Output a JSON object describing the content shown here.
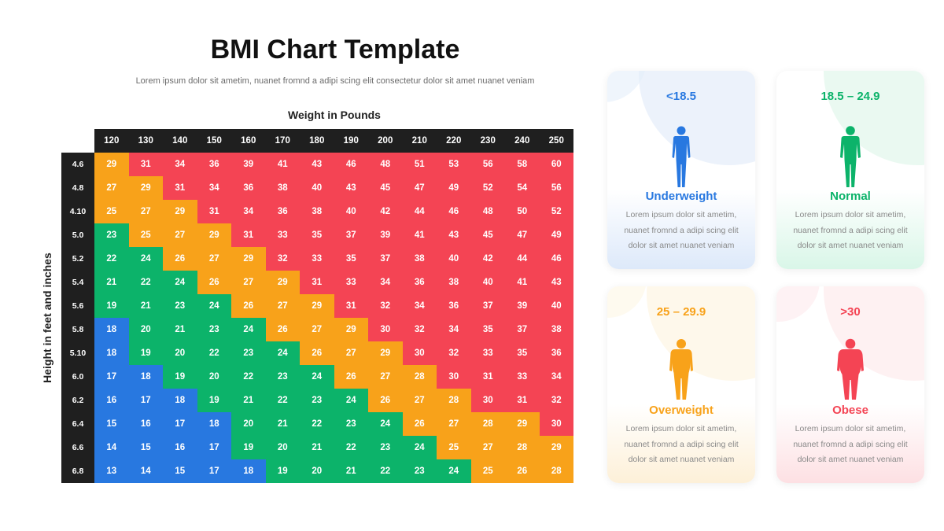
{
  "title": "BMI Chart Template",
  "subtitle": "Lorem ipsum dolor sit ametim, nuanet fromnd a adipi scing elit consectetur dolor sit amet nuanet veniam",
  "colors": {
    "underweight": "#2878e0",
    "normal": "#0cb36a",
    "overweight": "#f8a21a",
    "obese": "#f44454",
    "header": "#1f1f1f"
  },
  "chart_data": {
    "type": "heatmap",
    "title": "BMI Chart Template",
    "xlabel": "Weight in Pounds",
    "ylabel": "Height in feet and inches",
    "weights": [
      "120",
      "130",
      "140",
      "150",
      "160",
      "170",
      "180",
      "190",
      "200",
      "210",
      "220",
      "230",
      "240",
      "250"
    ],
    "heights": [
      "4.6",
      "4.8",
      "4.10",
      "5.0",
      "5.2",
      "5.4",
      "5.6",
      "5.8",
      "5.10",
      "6.0",
      "6.2",
      "6.4",
      "6.6",
      "6.8"
    ],
    "values": [
      [
        29,
        31,
        34,
        36,
        39,
        41,
        43,
        46,
        48,
        51,
        53,
        56,
        58,
        60
      ],
      [
        27,
        29,
        31,
        34,
        36,
        38,
        40,
        43,
        45,
        47,
        49,
        52,
        54,
        56
      ],
      [
        25,
        27,
        29,
        31,
        34,
        36,
        38,
        40,
        42,
        44,
        46,
        48,
        50,
        52
      ],
      [
        23,
        25,
        27,
        29,
        31,
        33,
        35,
        37,
        39,
        41,
        43,
        45,
        47,
        49
      ],
      [
        22,
        24,
        26,
        27,
        29,
        32,
        33,
        35,
        37,
        38,
        40,
        42,
        44,
        46
      ],
      [
        21,
        22,
        24,
        26,
        27,
        29,
        31,
        33,
        34,
        36,
        38,
        40,
        41,
        43
      ],
      [
        19,
        21,
        23,
        24,
        26,
        27,
        29,
        31,
        32,
        34,
        36,
        37,
        39,
        40
      ],
      [
        18,
        20,
        21,
        23,
        24,
        26,
        27,
        29,
        30,
        32,
        34,
        35,
        37,
        38
      ],
      [
        18,
        19,
        20,
        22,
        23,
        24,
        26,
        27,
        29,
        30,
        32,
        33,
        35,
        36
      ],
      [
        17,
        18,
        19,
        20,
        22,
        23,
        24,
        26,
        27,
        28,
        30,
        31,
        33,
        34
      ],
      [
        16,
        17,
        18,
        19,
        21,
        22,
        23,
        24,
        26,
        27,
        28,
        30,
        31,
        32
      ],
      [
        15,
        16,
        17,
        18,
        20,
        21,
        22,
        23,
        24,
        26,
        27,
        28,
        29,
        30
      ],
      [
        14,
        15,
        16,
        17,
        19,
        20,
        21,
        22,
        23,
        24,
        25,
        27,
        28,
        29
      ],
      [
        13,
        14,
        15,
        17,
        18,
        19,
        20,
        21,
        22,
        23,
        24,
        25,
        26,
        28
      ]
    ],
    "categories": [
      [
        "overweight",
        "obese",
        "obese",
        "obese",
        "obese",
        "obese",
        "obese",
        "obese",
        "obese",
        "obese",
        "obese",
        "obese",
        "obese",
        "obese"
      ],
      [
        "overweight",
        "overweight",
        "obese",
        "obese",
        "obese",
        "obese",
        "obese",
        "obese",
        "obese",
        "obese",
        "obese",
        "obese",
        "obese",
        "obese"
      ],
      [
        "overweight",
        "overweight",
        "overweight",
        "obese",
        "obese",
        "obese",
        "obese",
        "obese",
        "obese",
        "obese",
        "obese",
        "obese",
        "obese",
        "obese"
      ],
      [
        "normal",
        "overweight",
        "overweight",
        "overweight",
        "obese",
        "obese",
        "obese",
        "obese",
        "obese",
        "obese",
        "obese",
        "obese",
        "obese",
        "obese"
      ],
      [
        "normal",
        "normal",
        "overweight",
        "overweight",
        "overweight",
        "obese",
        "obese",
        "obese",
        "obese",
        "obese",
        "obese",
        "obese",
        "obese",
        "obese"
      ],
      [
        "normal",
        "normal",
        "normal",
        "overweight",
        "overweight",
        "overweight",
        "obese",
        "obese",
        "obese",
        "obese",
        "obese",
        "obese",
        "obese",
        "obese"
      ],
      [
        "normal",
        "normal",
        "normal",
        "normal",
        "overweight",
        "overweight",
        "overweight",
        "obese",
        "obese",
        "obese",
        "obese",
        "obese",
        "obese",
        "obese"
      ],
      [
        "underweight",
        "normal",
        "normal",
        "normal",
        "normal",
        "overweight",
        "overweight",
        "overweight",
        "obese",
        "obese",
        "obese",
        "obese",
        "obese",
        "obese"
      ],
      [
        "underweight",
        "normal",
        "normal",
        "normal",
        "normal",
        "normal",
        "overweight",
        "overweight",
        "overweight",
        "obese",
        "obese",
        "obese",
        "obese",
        "obese"
      ],
      [
        "underweight",
        "underweight",
        "normal",
        "normal",
        "normal",
        "normal",
        "normal",
        "overweight",
        "overweight",
        "overweight",
        "obese",
        "obese",
        "obese",
        "obese"
      ],
      [
        "underweight",
        "underweight",
        "underweight",
        "normal",
        "normal",
        "normal",
        "normal",
        "normal",
        "overweight",
        "overweight",
        "overweight",
        "obese",
        "obese",
        "obese"
      ],
      [
        "underweight",
        "underweight",
        "underweight",
        "underweight",
        "normal",
        "normal",
        "normal",
        "normal",
        "normal",
        "overweight",
        "overweight",
        "overweight",
        "overweight",
        "obese"
      ],
      [
        "underweight",
        "underweight",
        "underweight",
        "underweight",
        "normal",
        "normal",
        "normal",
        "normal",
        "normal",
        "normal",
        "overweight",
        "overweight",
        "overweight",
        "overweight"
      ],
      [
        "underweight",
        "underweight",
        "underweight",
        "underweight",
        "underweight",
        "normal",
        "normal",
        "normal",
        "normal",
        "normal",
        "normal",
        "overweight",
        "overweight",
        "overweight"
      ]
    ]
  },
  "cards": [
    {
      "key": "underweight",
      "range": "<18.5",
      "label": "Underweight",
      "desc_lines": [
        "Lorem ipsum dolor sit ametim,",
        "nuanet fromnd a adipi scing elit",
        "dolor sit amet nuanet veniam"
      ],
      "color": "#2878e0",
      "icon": "slim-person-icon"
    },
    {
      "key": "normal",
      "range": "18.5 – 24.9",
      "label": "Normal",
      "desc_lines": [
        "Lorem ipsum dolor sit ametim,",
        "nuanet fromnd a adipi scing elit",
        "dolor sit amet nuanet veniam"
      ],
      "color": "#0cb36a",
      "icon": "average-person-icon"
    },
    {
      "key": "overweight",
      "range": "25 – 29.9",
      "label": "Overweight",
      "desc_lines": [
        "Lorem ipsum dolor sit ametim,",
        "nuanet fromnd a adipi scing elit",
        "dolor sit amet nuanet veniam"
      ],
      "color": "#f8a21a",
      "icon": "heavy-person-icon"
    },
    {
      "key": "obese",
      "range": ">30",
      "label": "Obese",
      "desc_lines": [
        "Lorem ipsum dolor sit ametim,",
        "nuanet fromnd a adipi scing elit",
        "dolor sit amet nuanet veniam"
      ],
      "color": "#f44454",
      "icon": "obese-person-icon"
    }
  ]
}
